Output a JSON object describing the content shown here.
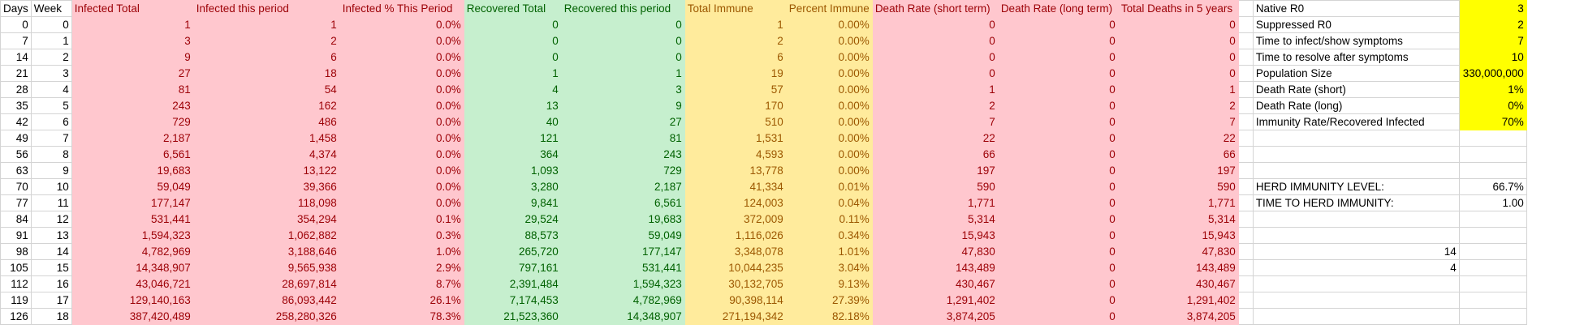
{
  "headers": [
    "Days",
    "Week",
    "Infected Total",
    "Infected this period",
    "Infected % This Period",
    "Recovered Total",
    "Recovered this period",
    "Total Immune",
    "Percent Immune",
    "Death Rate (short term)",
    "Death Rate (long term)",
    "Total Deaths in 5 years"
  ],
  "rows": [
    [
      "0",
      "0",
      "1",
      "1",
      "0.0%",
      "0",
      "0",
      "1",
      "0.00%",
      "0",
      "0",
      "0"
    ],
    [
      "7",
      "1",
      "3",
      "2",
      "0.0%",
      "0",
      "0",
      "2",
      "0.00%",
      "0",
      "0",
      "0"
    ],
    [
      "14",
      "2",
      "9",
      "6",
      "0.0%",
      "0",
      "0",
      "6",
      "0.00%",
      "0",
      "0",
      "0"
    ],
    [
      "21",
      "3",
      "27",
      "18",
      "0.0%",
      "1",
      "1",
      "19",
      "0.00%",
      "0",
      "0",
      "0"
    ],
    [
      "28",
      "4",
      "81",
      "54",
      "0.0%",
      "4",
      "3",
      "57",
      "0.00%",
      "1",
      "0",
      "1"
    ],
    [
      "35",
      "5",
      "243",
      "162",
      "0.0%",
      "13",
      "9",
      "170",
      "0.00%",
      "2",
      "0",
      "2"
    ],
    [
      "42",
      "6",
      "729",
      "486",
      "0.0%",
      "40",
      "27",
      "510",
      "0.00%",
      "7",
      "0",
      "7"
    ],
    [
      "49",
      "7",
      "2,187",
      "1,458",
      "0.0%",
      "121",
      "81",
      "1,531",
      "0.00%",
      "22",
      "0",
      "22"
    ],
    [
      "56",
      "8",
      "6,561",
      "4,374",
      "0.0%",
      "364",
      "243",
      "4,593",
      "0.00%",
      "66",
      "0",
      "66"
    ],
    [
      "63",
      "9",
      "19,683",
      "13,122",
      "0.0%",
      "1,093",
      "729",
      "13,778",
      "0.00%",
      "197",
      "0",
      "197"
    ],
    [
      "70",
      "10",
      "59,049",
      "39,366",
      "0.0%",
      "3,280",
      "2,187",
      "41,334",
      "0.01%",
      "590",
      "0",
      "590"
    ],
    [
      "77",
      "11",
      "177,147",
      "118,098",
      "0.0%",
      "9,841",
      "6,561",
      "124,003",
      "0.04%",
      "1,771",
      "0",
      "1,771"
    ],
    [
      "84",
      "12",
      "531,441",
      "354,294",
      "0.1%",
      "29,524",
      "19,683",
      "372,009",
      "0.11%",
      "5,314",
      "0",
      "5,314"
    ],
    [
      "91",
      "13",
      "1,594,323",
      "1,062,882",
      "0.3%",
      "88,573",
      "59,049",
      "1,116,026",
      "0.34%",
      "15,943",
      "0",
      "15,943"
    ],
    [
      "98",
      "14",
      "4,782,969",
      "3,188,646",
      "1.0%",
      "265,720",
      "177,147",
      "3,348,078",
      "1.01%",
      "47,830",
      "0",
      "47,830"
    ],
    [
      "105",
      "15",
      "14,348,907",
      "9,565,938",
      "2.9%",
      "797,161",
      "531,441",
      "10,044,235",
      "3.04%",
      "143,489",
      "0",
      "143,489"
    ],
    [
      "112",
      "16",
      "43,046,721",
      "28,697,814",
      "8.7%",
      "2,391,484",
      "1,594,323",
      "30,132,705",
      "9.13%",
      "430,467",
      "0",
      "430,467"
    ],
    [
      "119",
      "17",
      "129,140,163",
      "86,093,442",
      "26.1%",
      "7,174,453",
      "4,782,969",
      "90,398,114",
      "27.39%",
      "1,291,402",
      "0",
      "1,291,402"
    ],
    [
      "126",
      "18",
      "387,420,489",
      "258,280,326",
      "78.3%",
      "21,523,360",
      "14,348,907",
      "271,194,342",
      "82.18%",
      "3,874,205",
      "0",
      "3,874,205"
    ]
  ],
  "params": [
    {
      "label": "Native R0",
      "value": "3"
    },
    {
      "label": "Suppressed R0",
      "value": "2"
    },
    {
      "label": "Time to infect/show symptoms",
      "value": "7"
    },
    {
      "label": "Time to resolve after symptoms",
      "value": "10"
    },
    {
      "label": "Population Size",
      "value": "330,000,000"
    },
    {
      "label": "Death Rate (short)",
      "value": "1%"
    },
    {
      "label": "Death Rate (long)",
      "value": "0%"
    },
    {
      "label": "Immunity Rate/Recovered Infected",
      "value": "70%"
    }
  ],
  "herd": {
    "level_label": "HERD IMMUNITY LEVEL:",
    "level_value": "66.7%",
    "time_label": "TIME TO HERD IMMUNITY:",
    "time_value": "1.00"
  },
  "extra": {
    "a": "14",
    "b": "4"
  }
}
